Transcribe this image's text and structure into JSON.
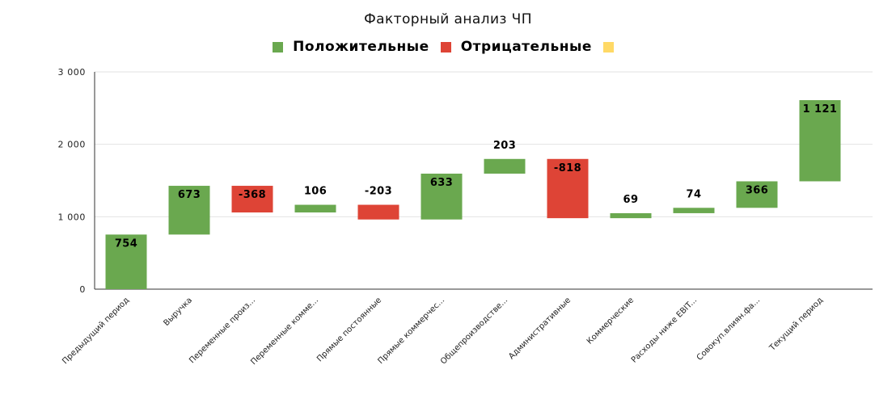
{
  "colors": {
    "positive": "#6aa84f",
    "negative": "#de4436",
    "total": "#ffd966",
    "grid": "#e2e2e2",
    "axis": "#333333"
  },
  "chart_data": {
    "type": "waterfall",
    "title": "Факторный анализ ЧП",
    "legend": [
      {
        "label": "Положительные",
        "color_key": "positive"
      },
      {
        "label": "Отрицательные",
        "color_key": "negative"
      },
      {
        "label": "",
        "color_key": "total"
      }
    ],
    "legend_position": "top",
    "ylim": [
      0,
      3000
    ],
    "yticks": [
      {
        "value": 0,
        "label": "0"
      },
      {
        "value": 1000,
        "label": "1 000"
      },
      {
        "value": 2000,
        "label": "2 000"
      },
      {
        "value": 3000,
        "label": "3 000"
      }
    ],
    "grid": true,
    "categories": [
      "Предыдущий период",
      "Выручка",
      "Переменные произ...",
      "Переменные комме...",
      "Прямые постоянные",
      "Прямые коммерчес...",
      "Общепроизводстве...",
      "Административные",
      "Коммерческие",
      "Расходы ниже EBIT...",
      "Совокуп.влиян.фа...",
      "Текущий период"
    ],
    "bars": [
      {
        "start": 0,
        "end": 754,
        "kind": "positive",
        "label": "754"
      },
      {
        "start": 754,
        "end": 1427,
        "kind": "positive",
        "label": "673"
      },
      {
        "start": 1427,
        "end": 1059,
        "kind": "negative",
        "label": "-368"
      },
      {
        "start": 1059,
        "end": 1165,
        "kind": "positive",
        "label": "106"
      },
      {
        "start": 1165,
        "end": 962,
        "kind": "negative",
        "label": "-203"
      },
      {
        "start": 962,
        "end": 1595,
        "kind": "positive",
        "label": "633"
      },
      {
        "start": 1595,
        "end": 1798,
        "kind": "positive",
        "label": "203"
      },
      {
        "start": 1798,
        "end": 980,
        "kind": "negative",
        "label": "-818"
      },
      {
        "start": 980,
        "end": 1049,
        "kind": "positive",
        "label": "69"
      },
      {
        "start": 1049,
        "end": 1123,
        "kind": "positive",
        "label": "74"
      },
      {
        "start": 1123,
        "end": 1489,
        "kind": "positive",
        "label": "366"
      },
      {
        "start": 1489,
        "end": 2610,
        "kind": "positive",
        "label": "1 121"
      }
    ]
  }
}
